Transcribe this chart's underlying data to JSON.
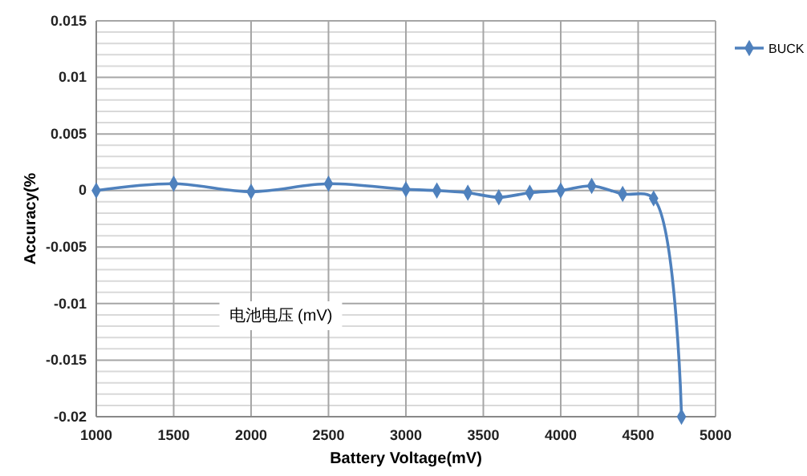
{
  "chart_data": {
    "type": "line",
    "xlabel": "Battery Voltage(mV)",
    "ylabel": "Accuracy(%",
    "annotations": [
      "电池电压 (mV)"
    ],
    "x": [
      1000,
      1500,
      2000,
      2500,
      3000,
      3200,
      3400,
      3600,
      3800,
      4000,
      4200,
      4400,
      4600,
      4780
    ],
    "series": [
      {
        "name": "BUCK",
        "color": "#4f81bd",
        "values": [
          0,
          0.0006,
          -0.0001,
          0.0006,
          0.0001,
          0,
          -0.0002,
          -0.0006,
          -0.0002,
          0,
          0.0004,
          -0.0003,
          -0.0007,
          -0.02
        ]
      }
    ],
    "xlim": [
      1000,
      5000
    ],
    "xticks": [
      1000,
      1500,
      2000,
      2500,
      3000,
      3500,
      4000,
      4500,
      5000
    ],
    "ylim": [
      -0.02,
      0.015
    ],
    "yticks": [
      -0.02,
      -0.015,
      -0.01,
      -0.005,
      0,
      0.005,
      0.01,
      0.015
    ],
    "grid": true,
    "legend": "right",
    "marker": "diamond",
    "line_style": "solid"
  }
}
